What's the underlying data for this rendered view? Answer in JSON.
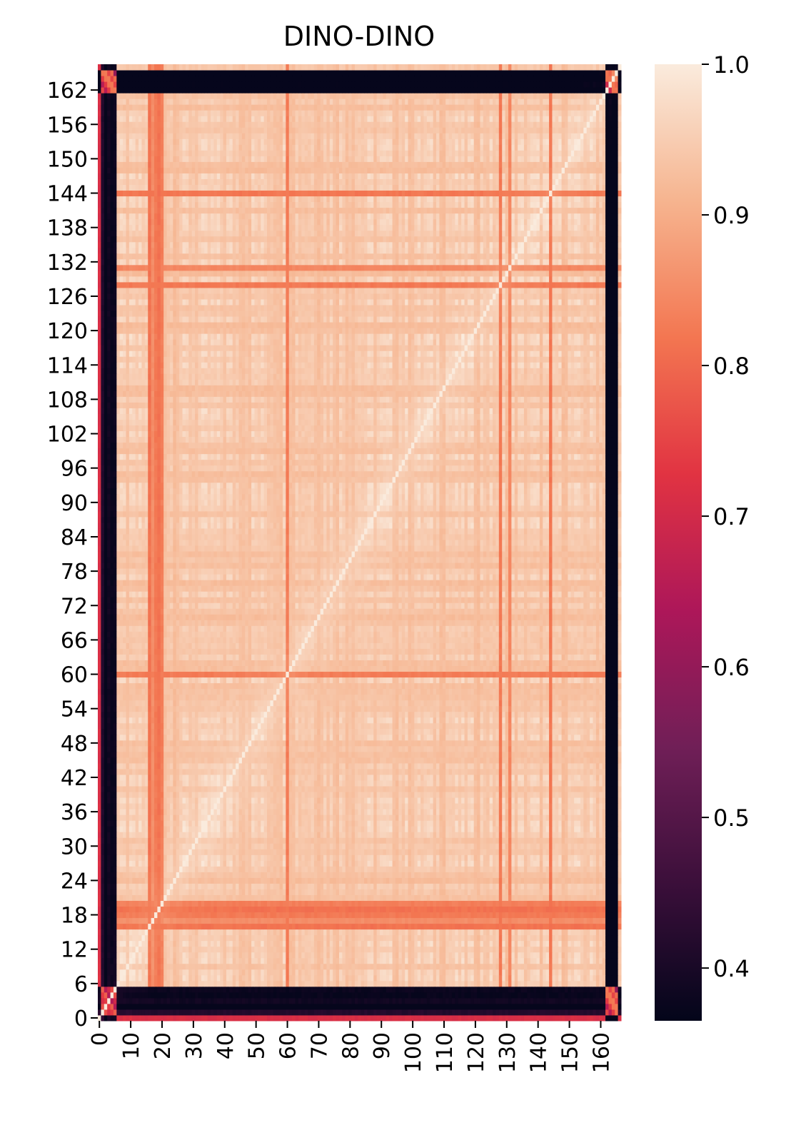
{
  "chart_data": {
    "type": "heatmap",
    "title": "DINO-DINO",
    "n_rows": 167,
    "n_cols": 167,
    "x_ticks": [
      0,
      10,
      20,
      30,
      40,
      50,
      60,
      70,
      80,
      90,
      100,
      110,
      120,
      130,
      140,
      150,
      160
    ],
    "y_ticks": [
      0,
      6,
      12,
      18,
      24,
      30,
      36,
      42,
      48,
      54,
      60,
      66,
      72,
      78,
      84,
      90,
      96,
      102,
      108,
      114,
      120,
      126,
      132,
      138,
      144,
      150,
      156,
      162
    ],
    "y_origin": "bottom",
    "colorbar": {
      "min": 0.365,
      "max": 1.0,
      "ticks": [
        "0.4",
        "0.5",
        "0.6",
        "0.7",
        "0.8",
        "0.9",
        "1.0"
      ],
      "colormap": "rocket",
      "stops": [
        "#03051a",
        "#3b0f3a",
        "#701f57",
        "#ad1759",
        "#e13342",
        "#f37651",
        "#f6b48f",
        "#faebdd"
      ]
    },
    "value_summary": {
      "diagonal": 1.0,
      "typical_off_diagonal": [
        0.88,
        0.97
      ],
      "low_similarity_columns": [
        1,
        2,
        3,
        4,
        5,
        162,
        163,
        164,
        165
      ],
      "low_similarity_rows": [
        1,
        2,
        3,
        4,
        5,
        162,
        163,
        164,
        165
      ],
      "mid_similarity_columns": [
        17,
        18,
        19,
        60,
        128,
        144
      ],
      "mid_similarity_rows": [
        16,
        17,
        18,
        19,
        20,
        60,
        128,
        131,
        144
      ],
      "min_value": 0.37
    }
  }
}
